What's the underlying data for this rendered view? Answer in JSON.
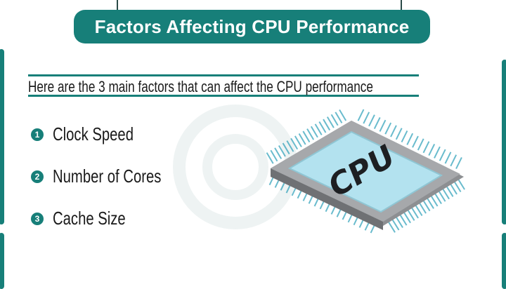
{
  "header": {
    "title": "Factors Affecting CPU Performance"
  },
  "intro": "Here are the 3 main factors that can affect the CPU performance",
  "factors": [
    {
      "number": "1",
      "label": "Clock Speed"
    },
    {
      "number": "2",
      "label": "Number of Cores"
    },
    {
      "number": "3",
      "label": "Cache Size"
    }
  ],
  "illustration": {
    "chip_label": "CPU"
  },
  "colors": {
    "accent": "#177f79",
    "chip_face": "#b3e2ef",
    "chip_body": "#8d8f92",
    "pins": "#2a9fb8"
  }
}
